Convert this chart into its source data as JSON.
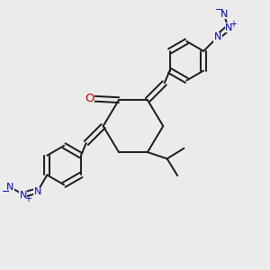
{
  "bg_color": "#ebebeb",
  "bond_color": "#1a1a1a",
  "bond_width": 1.4,
  "o_color": "#cc0000",
  "n_color": "#0000cc",
  "fig_size": [
    3.0,
    3.0
  ],
  "dpi": 100,
  "xlim": [
    0.0,
    1.0
  ],
  "ylim": [
    0.0,
    1.0
  ]
}
